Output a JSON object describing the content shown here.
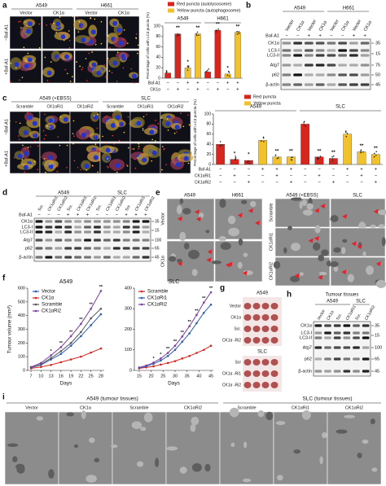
{
  "panel_labels": [
    "a",
    "b",
    "c",
    "d",
    "e",
    "f",
    "g",
    "h",
    "i"
  ],
  "a": {
    "groups": [
      "A549",
      "H661"
    ],
    "columns": [
      "Vector",
      "CK1α",
      "Vector",
      "CK1α"
    ],
    "rows": [
      "−Baf-A1",
      "+Baf-A1"
    ]
  },
  "b": {
    "groups": [
      "A549",
      "H661"
    ],
    "lanes": [
      "Vector",
      "CK1α",
      "Vector",
      "CK1α",
      "Vector",
      "CK1α",
      "Vector",
      "CK1α"
    ],
    "signs": [
      "−",
      "−",
      "+",
      "+",
      "−",
      "−",
      "+",
      "+"
    ],
    "row_labels": [
      "Baf-A1",
      "CK1α",
      "LC3-I",
      "LC3-II",
      "Atg7",
      "p62",
      "β-actin"
    ],
    "mw": [
      "35",
      "15",
      "75",
      "50",
      "45"
    ]
  },
  "c": {
    "groups": [
      "A549 (+EBSS)",
      "SLC"
    ],
    "columns": [
      "Scramble",
      "CK1αRi1",
      "CK1αRi2",
      "Scramble",
      "CK1αRi1",
      "CK1αRi2"
    ],
    "rows": [
      "−Baf-A1",
      "+Baf-A1"
    ]
  },
  "d": {
    "groups": [
      "A549",
      "SLC"
    ],
    "lanes": [
      "Scr.",
      "CK1αRi1",
      "CK1αRi2",
      "Scr.",
      "CK1αRi1",
      "CK1αRi2",
      "Scr.",
      "CK1αRi1",
      "CK1αRi2",
      "Scr.",
      "CK1αRi1",
      "CK1αRi2"
    ],
    "signs": [
      "−",
      "−",
      "−",
      "+",
      "+",
      "+",
      "−",
      "−",
      "−",
      "+",
      "+",
      "+"
    ],
    "row_labels": [
      "Baf-A1",
      "CK1α",
      "LC3-I",
      "LC3-II",
      "Atg7",
      "p62",
      "β-actin"
    ],
    "mw": [
      "35",
      "15",
      "100",
      "65",
      "45"
    ]
  },
  "e": {
    "left_groups": [
      "A549",
      "H661"
    ],
    "left_rows": [
      "Vector",
      "CK1α"
    ],
    "right_groups": [
      "A549 (+EBSS)",
      "SLC"
    ],
    "right_rows": [
      "Scramble",
      "CK1αRi1",
      "CK1αRi2"
    ]
  },
  "g": {
    "groups": [
      "A549",
      "SLC"
    ],
    "a549_rows": [
      "Vector",
      "CK1α",
      "Scr.",
      "CK1α -Ri2"
    ],
    "slc_rows": [
      "Scr",
      "CK1α -Ri1",
      "CK1α -Ri2"
    ]
  },
  "h": {
    "title": "Tumour tissues",
    "groups": [
      "A549",
      "SLC"
    ],
    "lanes": [
      "Vector",
      "CK1α",
      "Scr.",
      "CK1αRi1",
      "Scr.",
      "CK1αRi2"
    ],
    "row_labels": [
      "CK1α",
      "LC3-I",
      "LC3-II",
      "Atg7",
      "p62",
      "β-actin"
    ],
    "mw": [
      "35",
      "15",
      "100",
      "65",
      "45"
    ]
  },
  "i": {
    "groups": [
      "A549 (tumour tissues)",
      "SLC (tumour tissues)"
    ],
    "columns": [
      "Vector",
      "CK1α",
      "Scramble",
      "CK1αRi2",
      "Scramble",
      "CK1αRi1",
      "CK1αRi2"
    ]
  },
  "chart_data": [
    {
      "type": "bar",
      "ylabel": "Percentage of cells with LC3 puncta (%)",
      "groups": [
        "A549",
        "H661"
      ],
      "ylim": [
        0,
        100
      ],
      "yticks": [
        0,
        20,
        40,
        60,
        80,
        100
      ],
      "series": [
        {
          "name": "Red puncta (autolysosome)",
          "color": "#d7261e",
          "values": [
            10,
            85,
            null,
            null,
            12,
            92,
            null,
            null
          ]
        },
        {
          "name": "Yellow puncta (autophagosome)",
          "color": "#f2c12e",
          "values": [
            null,
            null,
            20,
            85,
            null,
            null,
            8,
            88
          ]
        }
      ],
      "significance": [
        null,
        "**",
        "*",
        "**",
        null,
        "**",
        "*",
        "**"
      ],
      "rows": [
        {
          "name": "Baf-A1",
          "values": [
            "−",
            "−",
            "+",
            "+",
            "−",
            "−",
            "+",
            "+"
          ]
        },
        {
          "name": "CK1α",
          "values": [
            "−",
            "+",
            "−",
            "+",
            "−",
            "+",
            "−",
            "+"
          ]
        }
      ]
    },
    {
      "type": "bar",
      "ylabel": "Percentage of cells with LC3 puncta (%)",
      "groups": [
        "A549",
        "SLC"
      ],
      "ylim": [
        0,
        100
      ],
      "yticks": [
        0,
        20,
        40,
        60,
        80,
        100
      ],
      "series": [
        {
          "name": "Red puncta",
          "color": "#d7261e",
          "values": [
            40,
            10,
            8,
            null,
            null,
            null,
            80,
            15,
            12,
            null,
            null,
            null
          ]
        },
        {
          "name": "Yellow puncta",
          "color": "#f2c12e",
          "values": [
            null,
            null,
            null,
            48,
            15,
            15,
            null,
            null,
            null,
            60,
            25,
            20
          ]
        }
      ],
      "significance": [
        null,
        "*",
        "*",
        null,
        "**",
        "**",
        null,
        "**",
        "**",
        null,
        "**",
        "**"
      ],
      "rows": [
        {
          "name": "Baf-A1",
          "values": [
            "−",
            "−",
            "−",
            "+",
            "+",
            "+",
            "−",
            "−",
            "−",
            "+",
            "+",
            "+"
          ]
        },
        {
          "name": "CK1αRi1",
          "values": [
            "−",
            "+",
            "−",
            "−",
            "+",
            "−",
            "−",
            "+",
            "−",
            "−",
            "+",
            "−"
          ]
        },
        {
          "name": "CK1αRi2",
          "values": [
            "−",
            "−",
            "+",
            "−",
            "−",
            "+",
            "−",
            "−",
            "+",
            "−",
            "−",
            "+"
          ]
        }
      ]
    },
    {
      "type": "line",
      "title": "A549",
      "xlabel": "Days",
      "ylabel": "Tumour volume (mm³)",
      "x": [
        7,
        10,
        13,
        16,
        19,
        22,
        25,
        28
      ],
      "xlim": [
        6,
        29
      ],
      "xticks": [
        7,
        10,
        13,
        16,
        19,
        22,
        25,
        28
      ],
      "ylim": [
        0,
        600
      ],
      "yticks": [
        0,
        100,
        200,
        300,
        400,
        500,
        600
      ],
      "series": [
        {
          "name": "Vector",
          "color": "#2b5fb4",
          "values": [
            20,
            40,
            80,
            120,
            180,
            250,
            330,
            410
          ]
        },
        {
          "name": "CK1α",
          "color": "#d7261e",
          "values": [
            15,
            25,
            40,
            60,
            80,
            100,
            130,
            160
          ]
        },
        {
          "name": "Scramble",
          "color": "#555555",
          "values": [
            20,
            45,
            90,
            140,
            200,
            280,
            380,
            450
          ]
        },
        {
          "name": "CK1αRi2",
          "color": "#7b3fa0",
          "values": [
            25,
            55,
            110,
            170,
            250,
            340,
            450,
            580
          ]
        }
      ],
      "significance": [
        null,
        null,
        "*",
        "**",
        "**",
        "**",
        "**",
        "**"
      ]
    },
    {
      "type": "line",
      "title": "SLC",
      "xlabel": "Days",
      "x": [
        15,
        18,
        21,
        24,
        27,
        30,
        33,
        36,
        39,
        42,
        45
      ],
      "xlim": [
        13,
        46
      ],
      "xticks": [
        15,
        20,
        25,
        30,
        35,
        40,
        45
      ],
      "ylim": [
        0,
        400
      ],
      "yticks": [
        0,
        100,
        200,
        300,
        400
      ],
      "series": [
        {
          "name": "Scramble",
          "color": "#d7261e",
          "values": [
            10,
            15,
            20,
            28,
            36,
            45,
            58,
            70,
            85,
            100,
            120
          ]
        },
        {
          "name": "CK1αRi1",
          "color": "#2b5fb4",
          "values": [
            12,
            20,
            32,
            48,
            70,
            100,
            140,
            180,
            230,
            280,
            320
          ]
        },
        {
          "name": "CK1αRi2",
          "color": "#7b3fa0",
          "values": [
            14,
            24,
            38,
            58,
            85,
            120,
            165,
            215,
            270,
            330,
            380
          ]
        }
      ],
      "significance": [
        null,
        null,
        "*",
        "*",
        "**",
        "**",
        "**",
        "**",
        "**",
        "**",
        "**"
      ]
    }
  ]
}
